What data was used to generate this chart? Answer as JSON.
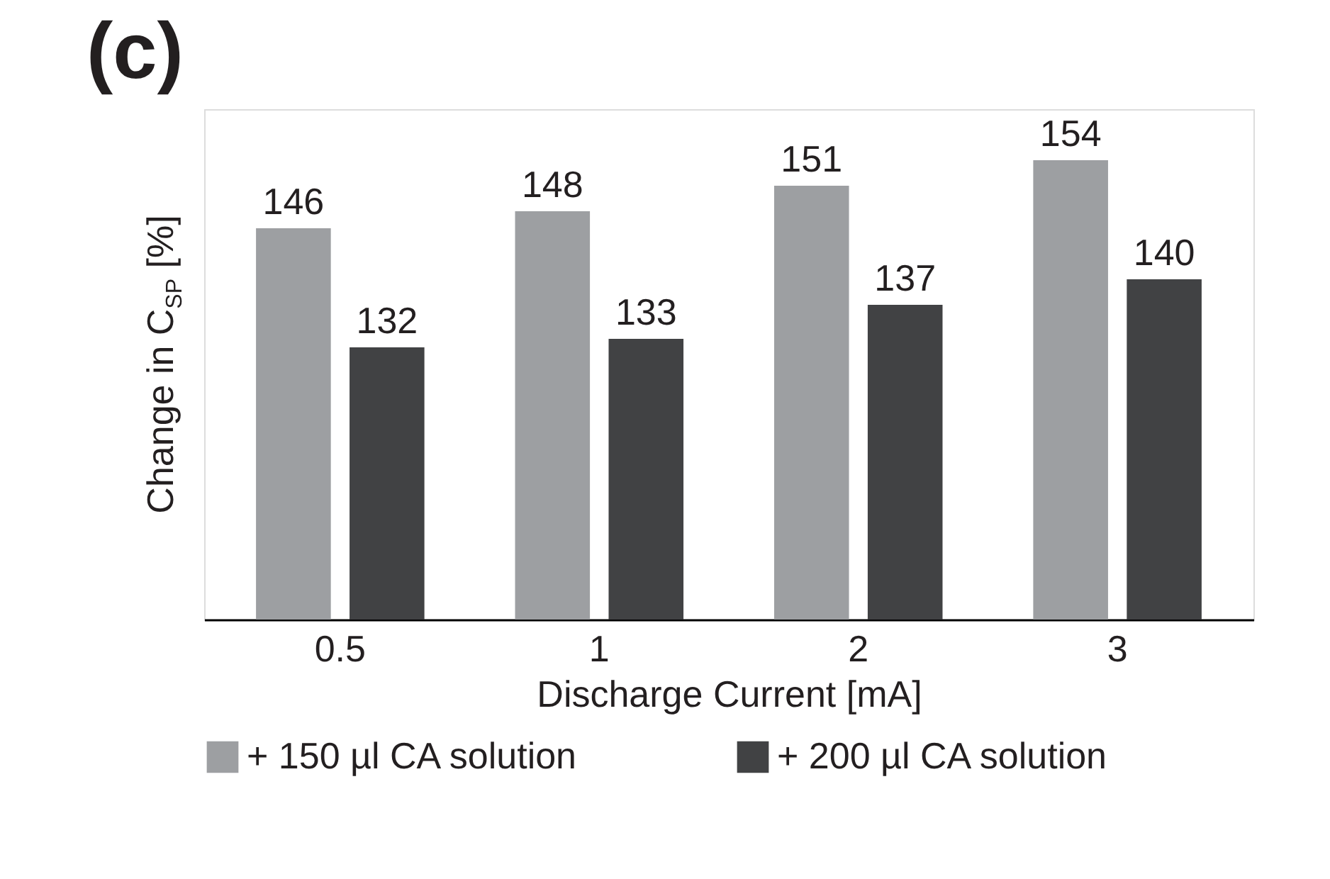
{
  "chart_data": {
    "type": "bar",
    "title": "(c)",
    "xlabel": "Discharge Current [mA]",
    "ylabel": "Change in C$_{SP}$ [%]",
    "categories": [
      "0.5",
      "1",
      "2",
      "3"
    ],
    "series": [
      {
        "name": "+ 150 µl CA solution",
        "color": "#9d9fa2",
        "values": [
          146,
          148,
          151,
          154
        ]
      },
      {
        "name": "+ 200 µl CA solution",
        "color": "#414244",
        "values": [
          132,
          133,
          137,
          140
        ]
      }
    ],
    "ylim": [
      100,
      160
    ],
    "data_labels": true,
    "grid": false,
    "legend": "bottom",
    "tick_labels": "x"
  }
}
